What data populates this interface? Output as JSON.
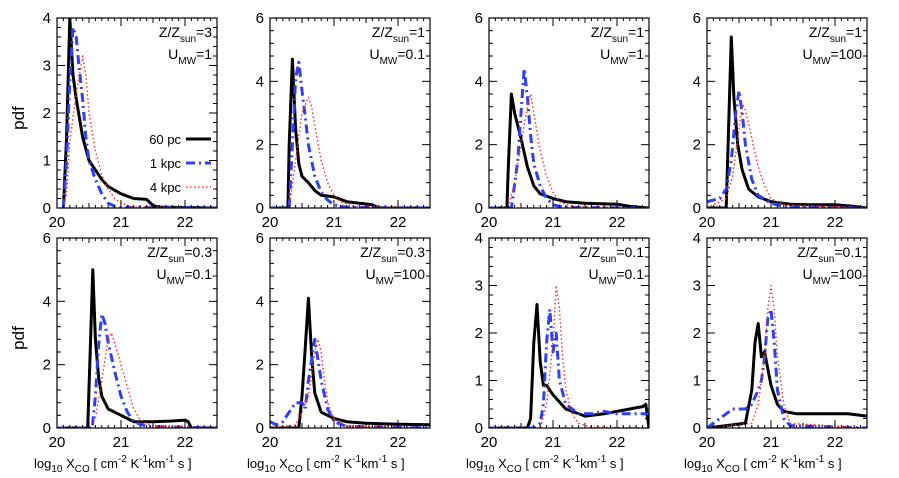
{
  "figure": {
    "ylabel": "pdf",
    "xlabel_main": "log",
    "xlabel_sub": "10",
    "xlabel_x": "X",
    "xlabel_co": "CO",
    "xlabel_units": "[ cm",
    "xlabel_e1": "-2",
    "xlabel_k": "K",
    "xlabel_e2": "-1",
    "xlabel_km": "km",
    "xlabel_e3": "-1",
    "xlabel_s": "s ]"
  },
  "legend": {
    "items": [
      {
        "label": "60 pc",
        "color": "#000000",
        "style": "solid"
      },
      {
        "label": "1 kpc",
        "color": "#2e3ff5",
        "style": "dashdot"
      },
      {
        "label": "4 kpc",
        "color": "#ff2a2a",
        "style": "dotted"
      }
    ]
  },
  "panels": [
    {
      "z_label": "Z/Z",
      "z_sub": "sun",
      "z_val": "=3",
      "u_label": "U",
      "u_sub": "MW",
      "u_val": "=1"
    },
    {
      "z_label": "Z/Z",
      "z_sub": "sun",
      "z_val": "=1",
      "u_label": "U",
      "u_sub": "MW",
      "u_val": "=0.1"
    },
    {
      "z_label": "Z/Z",
      "z_sub": "sun",
      "z_val": "=1",
      "u_label": "U",
      "u_sub": "MW",
      "u_val": "=1"
    },
    {
      "z_label": "Z/Z",
      "z_sub": "sun",
      "z_val": "=1",
      "u_label": "U",
      "u_sub": "MW",
      "u_val": "=100"
    },
    {
      "z_label": "Z/Z",
      "z_sub": "sun",
      "z_val": "=0.3",
      "u_label": "U",
      "u_sub": "MW",
      "u_val": "=0.1"
    },
    {
      "z_label": "Z/Z",
      "z_sub": "sun",
      "z_val": "=0.3",
      "u_label": "U",
      "u_sub": "MW",
      "u_val": "=100"
    },
    {
      "z_label": "Z/Z",
      "z_sub": "sun",
      "z_val": "=0.1",
      "u_label": "U",
      "u_sub": "MW",
      "u_val": "=0.1"
    },
    {
      "z_label": "Z/Z",
      "z_sub": "sun",
      "z_val": "=0.1",
      "u_label": "U",
      "u_sub": "MW",
      "u_val": "=100"
    }
  ],
  "chart_data": [
    {
      "type": "line",
      "title": "Z/Zsun=3, UMW=1",
      "xlim": [
        20,
        22.5
      ],
      "ylim": [
        0,
        4
      ],
      "xticks": [
        20,
        21,
        22
      ],
      "yticks": [
        0,
        1,
        2,
        3,
        4
      ],
      "series": [
        {
          "name": "60 pc",
          "x": [
            20.1,
            20.15,
            20.2,
            20.25,
            20.3,
            20.4,
            20.5,
            20.6,
            20.7,
            20.8,
            21.0,
            21.2,
            21.4,
            21.5,
            21.6,
            22.5
          ],
          "y": [
            0,
            1.5,
            4.0,
            2.8,
            2.3,
            1.5,
            1.0,
            0.8,
            0.6,
            0.45,
            0.3,
            0.2,
            0.18,
            0.05,
            0.02,
            0
          ]
        },
        {
          "name": "1 kpc",
          "x": [
            20.1,
            20.15,
            20.2,
            20.25,
            20.3,
            20.35,
            20.4,
            20.45,
            20.5,
            20.6,
            20.7,
            20.8,
            20.9,
            21.0,
            22.5
          ],
          "y": [
            0,
            1.0,
            2.7,
            3.8,
            3.6,
            2.9,
            2.3,
            1.5,
            1.0,
            0.6,
            0.3,
            0.1,
            0.04,
            0.01,
            0
          ]
        },
        {
          "name": "4 kpc",
          "x": [
            20.1,
            20.15,
            20.2,
            20.3,
            20.35,
            20.4,
            20.45,
            20.5,
            20.6,
            20.7,
            20.8,
            20.9,
            21.0,
            21.2,
            22.5
          ],
          "y": [
            0,
            0.3,
            1.4,
            2.4,
            2.8,
            3.2,
            2.8,
            2.0,
            1.2,
            0.7,
            0.4,
            0.2,
            0.1,
            0.02,
            0
          ]
        }
      ]
    },
    {
      "type": "line",
      "title": "Z/Zsun=1, UMW=0.1",
      "xlim": [
        20,
        22.5
      ],
      "ylim": [
        0,
        6
      ],
      "xticks": [
        20,
        21,
        22
      ],
      "yticks": [
        0,
        2,
        4,
        6
      ],
      "series": [
        {
          "name": "60 pc",
          "x": [
            20.0,
            20.28,
            20.3,
            20.35,
            20.4,
            20.45,
            20.5,
            20.6,
            20.7,
            20.8,
            21.0,
            21.2,
            21.4,
            21.6,
            21.7,
            22.5
          ],
          "y": [
            0,
            0,
            2.0,
            4.7,
            2.5,
            1.4,
            1.0,
            0.8,
            0.55,
            0.4,
            0.35,
            0.2,
            0.15,
            0.1,
            0,
            0
          ]
        },
        {
          "name": "1 kpc",
          "x": [
            20.0,
            20.3,
            20.35,
            20.4,
            20.45,
            20.5,
            20.55,
            20.6,
            20.7,
            20.8,
            20.9,
            21.0,
            21.2,
            22.5
          ],
          "y": [
            0,
            0,
            2.0,
            4.1,
            4.6,
            3.7,
            2.9,
            2.0,
            1.0,
            0.5,
            0.25,
            0.1,
            0.02,
            0
          ]
        },
        {
          "name": "4 kpc",
          "x": [
            20.0,
            20.3,
            20.4,
            20.5,
            20.6,
            20.65,
            20.7,
            20.8,
            20.9,
            21.0,
            21.1,
            21.3,
            22.5
          ],
          "y": [
            0,
            0,
            1.5,
            3.0,
            3.5,
            3.2,
            2.6,
            1.5,
            0.8,
            0.4,
            0.2,
            0.05,
            0
          ]
        }
      ]
    },
    {
      "type": "line",
      "title": "Z/Zsun=1, UMW=1",
      "xlim": [
        20,
        22.5
      ],
      "ylim": [
        0,
        6
      ],
      "xticks": [
        20,
        21,
        22
      ],
      "yticks": [
        0,
        2,
        4,
        6
      ],
      "series": [
        {
          "name": "60 pc",
          "x": [
            20.0,
            20.28,
            20.3,
            20.35,
            20.4,
            20.5,
            20.6,
            20.7,
            20.8,
            21.0,
            21.2,
            21.5,
            22.0,
            22.2,
            22.5
          ],
          "y": [
            0,
            0,
            1.2,
            3.6,
            3.0,
            2.2,
            1.3,
            0.7,
            0.45,
            0.3,
            0.2,
            0.15,
            0.12,
            0.05,
            0
          ]
        },
        {
          "name": "1 kpc",
          "x": [
            20.0,
            20.35,
            20.45,
            20.5,
            20.55,
            20.6,
            20.65,
            20.7,
            20.8,
            20.9,
            21.0,
            21.2,
            22.5
          ],
          "y": [
            0,
            0,
            1.5,
            3.0,
            4.4,
            3.5,
            2.3,
            1.4,
            0.7,
            0.3,
            0.1,
            0.02,
            0
          ]
        },
        {
          "name": "4 kpc",
          "x": [
            20.0,
            20.3,
            20.4,
            20.5,
            20.6,
            20.65,
            20.7,
            20.8,
            20.9,
            21.0,
            21.1,
            21.3,
            22.5
          ],
          "y": [
            0,
            0,
            0.8,
            2.0,
            3.2,
            3.6,
            3.0,
            1.8,
            1.0,
            0.5,
            0.2,
            0.05,
            0
          ]
        }
      ]
    },
    {
      "type": "line",
      "title": "Z/Zsun=1, UMW=100",
      "xlim": [
        20,
        22.5
      ],
      "ylim": [
        0,
        6
      ],
      "xticks": [
        20,
        21,
        22
      ],
      "yticks": [
        0,
        2,
        4,
        6
      ],
      "series": [
        {
          "name": "60 pc",
          "x": [
            20.0,
            20.3,
            20.33,
            20.38,
            20.42,
            20.48,
            20.55,
            20.65,
            20.8,
            21.0,
            21.3,
            21.6,
            22.0,
            22.3,
            22.5
          ],
          "y": [
            0,
            0,
            2.0,
            5.4,
            3.5,
            2.0,
            1.2,
            0.6,
            0.35,
            0.2,
            0.12,
            0.1,
            0.1,
            0.05,
            0
          ]
        },
        {
          "name": "1 kpc",
          "x": [
            20.0,
            20.2,
            20.3,
            20.38,
            20.45,
            20.5,
            20.55,
            20.6,
            20.7,
            20.8,
            21.0,
            21.2,
            22.5
          ],
          "y": [
            0.2,
            0.3,
            0.6,
            1.5,
            3.0,
            3.7,
            3.0,
            2.0,
            0.9,
            0.4,
            0.15,
            0.05,
            0
          ]
        },
        {
          "name": "4 kpc",
          "x": [
            20.0,
            20.3,
            20.4,
            20.5,
            20.55,
            20.6,
            20.7,
            20.8,
            20.9,
            21.0,
            21.2,
            22.5
          ],
          "y": [
            0,
            0.3,
            1.0,
            2.5,
            3.3,
            3.1,
            2.2,
            1.3,
            0.7,
            0.3,
            0.1,
            0
          ]
        }
      ]
    },
    {
      "type": "line",
      "title": "Z/Zsun=0.3, UMW=0.1",
      "xlim": [
        20,
        22.5
      ],
      "ylim": [
        0,
        6
      ],
      "xticks": [
        20,
        21,
        22
      ],
      "yticks": [
        0,
        2,
        4,
        6
      ],
      "series": [
        {
          "name": "60 pc",
          "x": [
            20.0,
            20.48,
            20.52,
            20.56,
            20.6,
            20.65,
            20.7,
            20.8,
            21.0,
            21.2,
            21.5,
            21.8,
            22.0,
            22.05,
            22.1,
            22.5
          ],
          "y": [
            0,
            0,
            2.5,
            5.0,
            2.8,
            1.6,
            1.0,
            0.6,
            0.4,
            0.2,
            0.2,
            0.22,
            0.25,
            0.2,
            0,
            0
          ]
        },
        {
          "name": "1 kpc",
          "x": [
            20.0,
            20.55,
            20.6,
            20.65,
            20.7,
            20.75,
            20.8,
            20.9,
            21.0,
            21.1,
            21.2,
            21.4,
            22.5
          ],
          "y": [
            0,
            0,
            1.0,
            2.6,
            3.6,
            3.3,
            2.7,
            1.8,
            1.0,
            0.5,
            0.2,
            0.05,
            0
          ]
        },
        {
          "name": "4 kpc",
          "x": [
            20.0,
            20.5,
            20.6,
            20.7,
            20.8,
            20.85,
            20.9,
            21.0,
            21.1,
            21.2,
            21.3,
            21.5,
            22.5
          ],
          "y": [
            0,
            0,
            0.3,
            1.5,
            2.8,
            3.0,
            2.7,
            2.0,
            1.3,
            0.6,
            0.25,
            0.05,
            0
          ]
        }
      ]
    },
    {
      "type": "line",
      "title": "Z/Zsun=0.3, UMW=100",
      "xlim": [
        20,
        22.5
      ],
      "ylim": [
        0,
        6
      ],
      "xticks": [
        20,
        21,
        22
      ],
      "yticks": [
        0,
        2,
        4,
        6
      ],
      "series": [
        {
          "name": "60 pc",
          "x": [
            20.0,
            20.45,
            20.5,
            20.55,
            20.6,
            20.65,
            20.7,
            20.8,
            21.0,
            21.2,
            21.5,
            22.0,
            22.5
          ],
          "y": [
            0,
            0,
            1.0,
            2.5,
            4.1,
            2.3,
            1.1,
            0.5,
            0.3,
            0.2,
            0.15,
            0.12,
            0.1
          ]
        },
        {
          "name": "1 kpc",
          "x": [
            20.0,
            20.1,
            20.2,
            20.3,
            20.4,
            20.5,
            20.55,
            20.6,
            20.7,
            20.8,
            20.9,
            21.0,
            21.2,
            22.5
          ],
          "y": [
            0.2,
            0.1,
            0.2,
            0.5,
            0.8,
            0.8,
            0.6,
            1.5,
            2.8,
            1.5,
            0.6,
            0.2,
            0.05,
            0
          ]
        },
        {
          "name": "4 kpc",
          "x": [
            20.0,
            20.4,
            20.5,
            20.6,
            20.7,
            20.75,
            20.8,
            20.85,
            20.9,
            21.0,
            21.2,
            22.5
          ],
          "y": [
            0,
            0.1,
            0.5,
            1.0,
            2.4,
            2.8,
            2.4,
            1.5,
            0.8,
            0.3,
            0.05,
            0
          ]
        }
      ]
    },
    {
      "type": "line",
      "title": "Z/Zsun=0.1, UMW=0.1",
      "xlim": [
        20,
        22.5
      ],
      "ylim": [
        0,
        4
      ],
      "xticks": [
        20,
        21,
        22
      ],
      "yticks": [
        0,
        1,
        2,
        3,
        4
      ],
      "series": [
        {
          "name": "60 pc",
          "x": [
            20.0,
            20.6,
            20.65,
            20.7,
            20.75,
            20.8,
            20.85,
            20.9,
            21.0,
            21.2,
            21.5,
            21.8,
            22.0,
            22.2,
            22.4,
            22.45,
            22.5
          ],
          "y": [
            0,
            0,
            0.2,
            1.8,
            2.6,
            1.4,
            0.9,
            0.9,
            0.7,
            0.4,
            0.25,
            0.3,
            0.35,
            0.4,
            0.45,
            0.5,
            0
          ]
        },
        {
          "name": "1 kpc",
          "x": [
            20.0,
            20.7,
            20.8,
            20.85,
            20.9,
            20.95,
            21.0,
            21.05,
            21.1,
            21.2,
            21.4,
            21.6,
            21.8,
            22.0,
            22.5
          ],
          "y": [
            0,
            0,
            0.1,
            0.5,
            1.8,
            2.5,
            1.6,
            2.0,
            1.0,
            0.5,
            0.3,
            0.3,
            0.35,
            0.3,
            0.3
          ]
        },
        {
          "name": "4 kpc",
          "x": [
            20.0,
            20.8,
            20.9,
            21.0,
            21.05,
            21.1,
            21.15,
            21.2,
            21.3,
            21.4,
            21.6,
            22.5
          ],
          "y": [
            0,
            0,
            0.5,
            1.8,
            3.0,
            2.5,
            1.5,
            0.8,
            0.3,
            0.1,
            0.02,
            0
          ]
        }
      ]
    },
    {
      "type": "line",
      "title": "Z/Zsun=0.1, UMW=100",
      "xlim": [
        20,
        22.5
      ],
      "ylim": [
        0,
        4
      ],
      "xticks": [
        20,
        21,
        22
      ],
      "yticks": [
        0,
        1,
        2,
        3,
        4
      ],
      "series": [
        {
          "name": "60 pc",
          "x": [
            20.0,
            20.6,
            20.7,
            20.75,
            20.8,
            20.85,
            20.9,
            21.0,
            21.1,
            21.2,
            21.4,
            21.6,
            21.8,
            22.0,
            22.2,
            22.5
          ],
          "y": [
            0,
            0.1,
            0.8,
            1.8,
            2.2,
            1.5,
            1.6,
            0.9,
            0.5,
            0.35,
            0.3,
            0.3,
            0.3,
            0.3,
            0.3,
            0.25
          ]
        },
        {
          "name": "1 kpc",
          "x": [
            20.0,
            20.2,
            20.3,
            20.4,
            20.5,
            20.6,
            20.7,
            20.8,
            20.85,
            20.9,
            20.95,
            21.0,
            21.05,
            21.1,
            21.2,
            21.3,
            22.5
          ],
          "y": [
            0,
            0.2,
            0.3,
            0.4,
            0.4,
            0.4,
            0.5,
            0.8,
            1.0,
            1.5,
            2.3,
            2.5,
            1.8,
            0.8,
            0.2,
            0.05,
            0
          ]
        },
        {
          "name": "4 kpc",
          "x": [
            20.0,
            20.7,
            20.8,
            20.9,
            20.95,
            21.0,
            21.05,
            21.1,
            21.2,
            21.3,
            22.5
          ],
          "y": [
            0,
            0.1,
            0.5,
            1.5,
            2.5,
            3.0,
            2.5,
            1.5,
            0.5,
            0.1,
            0
          ]
        }
      ]
    }
  ]
}
